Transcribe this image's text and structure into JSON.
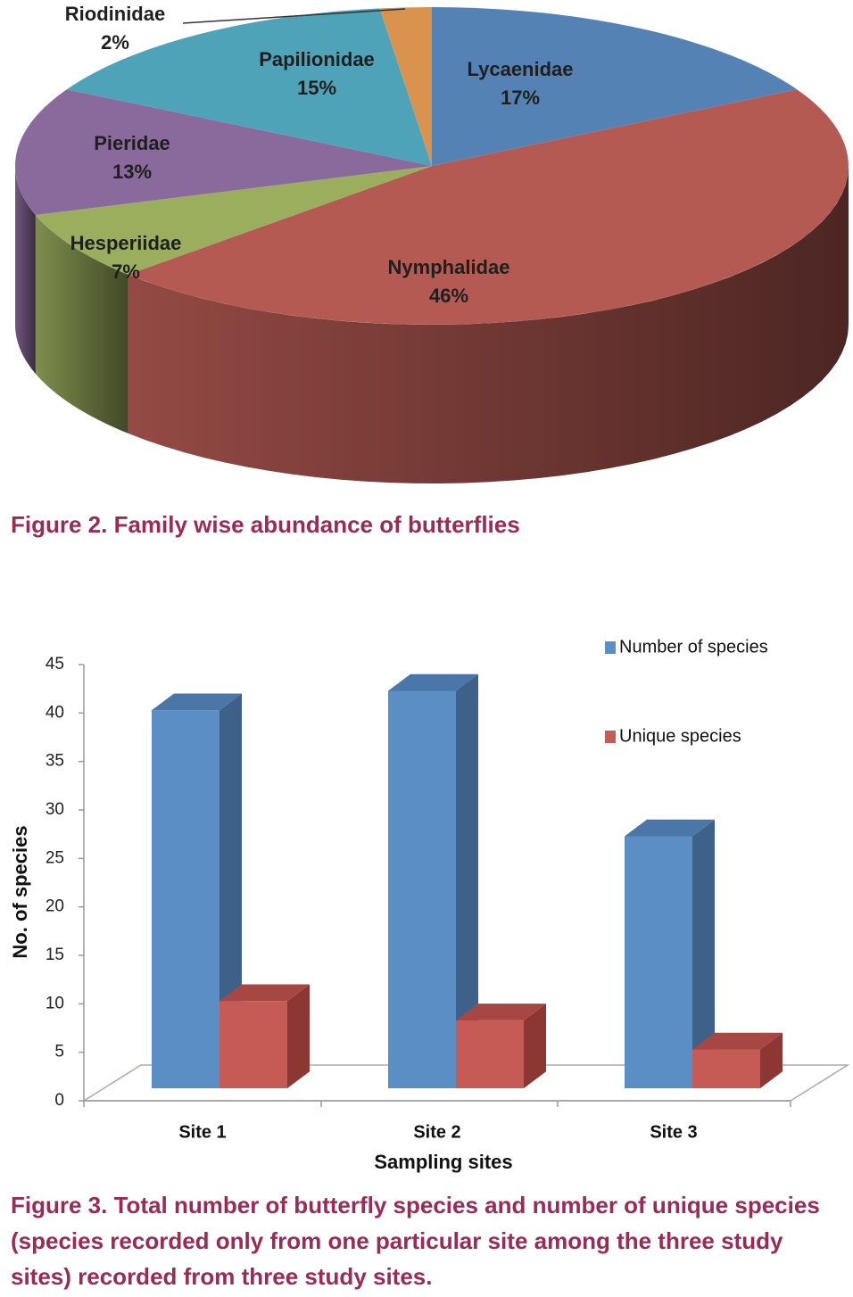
{
  "colors": {
    "caption": "#9b2a56",
    "blue": "#5b8ec4",
    "blue_top": "#4a77a8",
    "blue_side": "#3d6189",
    "red": "#c65b55",
    "red_top": "#a74743",
    "red_side": "#8d3734",
    "pie_lycaenidae": "#5582b5",
    "pie_nymphalidae": "#b55a53",
    "pie_hesperiidae": "#9aae5e",
    "pie_pieridae": "#8a6a9c",
    "pie_papilionidae": "#4ea3b8",
    "pie_riodinidae": "#d9934e"
  },
  "figure2": {
    "caption": "Figure 2. Family wise abundance of butterflies"
  },
  "figure3": {
    "caption": "Figure 3. Total number of butterfly species and number of unique species (species recorded only from one particular site among the three study sites) recorded from three study sites."
  },
  "chart_data": [
    {
      "type": "pie",
      "title": "Family wise abundance of butterflies",
      "slices": [
        {
          "label": "Lycaenidae",
          "pct_label": "17%",
          "value": 17
        },
        {
          "label": "Nymphalidae",
          "pct_label": "46%",
          "value": 46
        },
        {
          "label": "Hesperiidae",
          "pct_label": "7%",
          "value": 7
        },
        {
          "label": "Pieridae",
          "pct_label": "13%",
          "value": 13
        },
        {
          "label": "Papilionidae",
          "pct_label": "15%",
          "value": 15
        },
        {
          "label": "Riodinidae",
          "pct_label": "2%",
          "value": 2
        }
      ]
    },
    {
      "type": "bar",
      "title": "Total number of butterfly species and number of unique species",
      "categories": [
        "Site 1",
        "Site 2",
        "Site 3"
      ],
      "series": [
        {
          "name": "Number of species",
          "values": [
            39,
            41,
            26
          ]
        },
        {
          "name": "Unique species",
          "values": [
            9,
            7,
            4
          ]
        }
      ],
      "xlabel": "Sampling sites",
      "ylabel": "No. of species",
      "ylim": [
        0,
        45
      ],
      "yticks": [
        "0",
        "5",
        "10",
        "15",
        "20",
        "25",
        "30",
        "35",
        "40",
        "45"
      ],
      "legend_position": "top-right"
    }
  ]
}
